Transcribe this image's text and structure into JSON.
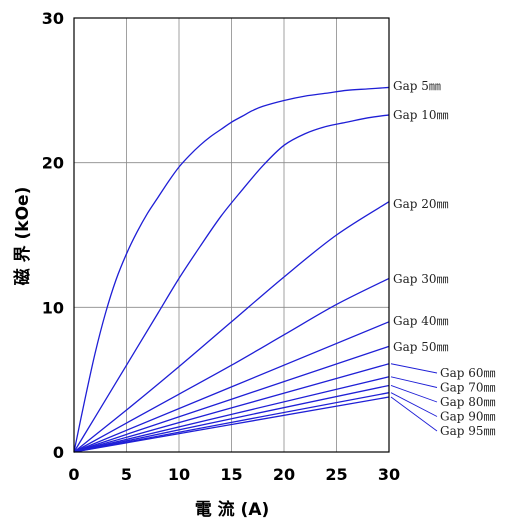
{
  "chart_data": {
    "type": "line",
    "title": "",
    "xlabel": "電 流 (A)",
    "ylabel": "磁 界 (kOe)",
    "xlim": [
      0,
      30
    ],
    "ylim": [
      0,
      30
    ],
    "xticks": [
      0,
      5,
      10,
      15,
      20,
      25,
      30
    ],
    "yticks": [
      0,
      10,
      20,
      30
    ],
    "xtick_labels": [
      "0",
      "5",
      "10",
      "15",
      "20",
      "25",
      "30"
    ],
    "ytick_labels": [
      "0",
      "10",
      "20",
      "30"
    ],
    "grid": true,
    "line_color": "#1f1fd6",
    "series": [
      {
        "name": "Gap 5㎜",
        "x": [
          0,
          1,
          2,
          3,
          4,
          5,
          6,
          7,
          8,
          9,
          10,
          11,
          12,
          13,
          14,
          15,
          16,
          17,
          18,
          20,
          22,
          24,
          26,
          28,
          30
        ],
        "y": [
          0,
          3.5,
          6.8,
          9.6,
          11.9,
          13.7,
          15.2,
          16.5,
          17.6,
          18.7,
          19.7,
          20.5,
          21.2,
          21.8,
          22.3,
          22.8,
          23.2,
          23.6,
          23.9,
          24.3,
          24.6,
          24.8,
          25.0,
          25.1,
          25.2
        ]
      },
      {
        "name": "Gap 10㎜",
        "x": [
          0,
          2,
          4,
          6,
          8,
          10,
          12,
          14,
          16,
          18,
          20,
          22,
          24,
          26,
          28,
          30
        ],
        "y": [
          0,
          2.4,
          4.8,
          7.2,
          9.6,
          12.0,
          14.2,
          16.3,
          18.1,
          19.8,
          21.2,
          22.0,
          22.5,
          22.8,
          23.1,
          23.3
        ]
      },
      {
        "name": "Gap 20㎜",
        "x": [
          0,
          5,
          10,
          15,
          20,
          25,
          30
        ],
        "y": [
          0,
          2.9,
          5.9,
          9.0,
          12.1,
          15.0,
          17.3
        ]
      },
      {
        "name": "Gap 30㎜",
        "x": [
          0,
          5,
          10,
          15,
          20,
          25,
          30
        ],
        "y": [
          0,
          2.0,
          4.0,
          6.0,
          8.1,
          10.2,
          12.0
        ]
      },
      {
        "name": "Gap 40㎜",
        "x": [
          0,
          30
        ],
        "y": [
          0,
          9.0
        ]
      },
      {
        "name": "Gap 50㎜",
        "x": [
          0,
          30
        ],
        "y": [
          0,
          7.3
        ]
      },
      {
        "name": "Gap 60㎜",
        "x": [
          0,
          30
        ],
        "y": [
          0,
          6.1
        ]
      },
      {
        "name": "Gap 70㎜",
        "x": [
          0,
          30
        ],
        "y": [
          0,
          5.2
        ]
      },
      {
        "name": "Gap 80㎜",
        "x": [
          0,
          30
        ],
        "y": [
          0,
          4.6
        ]
      },
      {
        "name": "Gap 90㎜",
        "x": [
          0,
          30
        ],
        "y": [
          0,
          4.1
        ]
      },
      {
        "name": "Gap 95㎜",
        "x": [
          0,
          30
        ],
        "y": [
          0,
          3.8
        ]
      }
    ]
  }
}
